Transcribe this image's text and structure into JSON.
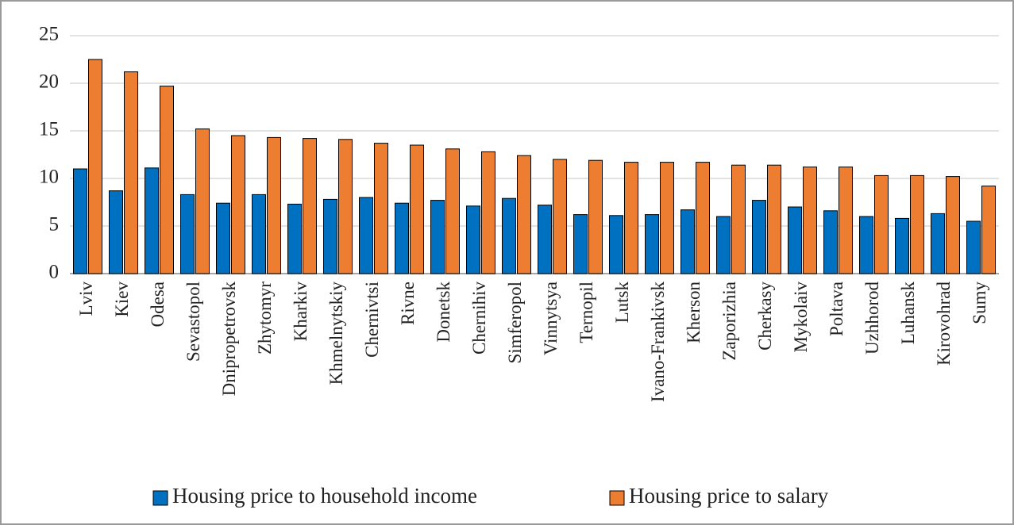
{
  "chart_data": {
    "type": "bar",
    "categories": [
      "Lviv",
      "Kiev",
      "Odesa",
      "Sevastopol",
      "Dnipropetrovsk",
      "Zhytomyr",
      "Kharkiv",
      "Khmelnytskiy",
      "Chernivtsi",
      "Rivne",
      "Donetsk",
      "Chernihiv",
      "Simferopol",
      "Vinnytsya",
      "Ternopil",
      "Lutsk",
      "Ivano-Frankivsk",
      "Kherson",
      "Zaporizhia",
      "Cherkasy",
      "Mykolaiv",
      "Poltava",
      "Uzhhorod",
      "Luhansk",
      "Kirovohrad",
      "Sumy"
    ],
    "series": [
      {
        "name": "Housing price to household income",
        "color": "#0070c0",
        "values": [
          11.0,
          8.7,
          11.1,
          8.3,
          7.4,
          8.3,
          7.3,
          7.8,
          8.0,
          7.4,
          7.7,
          7.1,
          7.9,
          7.2,
          6.2,
          6.1,
          6.2,
          6.7,
          6.0,
          7.7,
          7.0,
          6.6,
          6.0,
          5.8,
          6.3,
          5.5
        ]
      },
      {
        "name": "Housing price to salary",
        "color": "#ed7d31",
        "values": [
          22.5,
          21.2,
          19.7,
          15.2,
          14.5,
          14.3,
          14.2,
          14.1,
          13.7,
          13.5,
          13.1,
          12.8,
          12.4,
          12.0,
          11.9,
          11.7,
          11.7,
          11.7,
          11.4,
          11.4,
          11.2,
          11.2,
          10.3,
          10.3,
          10.2,
          9.2
        ]
      }
    ],
    "ylim": [
      0,
      25
    ],
    "yticks": [
      0,
      5,
      10,
      15,
      20,
      25
    ],
    "grid": true,
    "legend": "bottom"
  }
}
